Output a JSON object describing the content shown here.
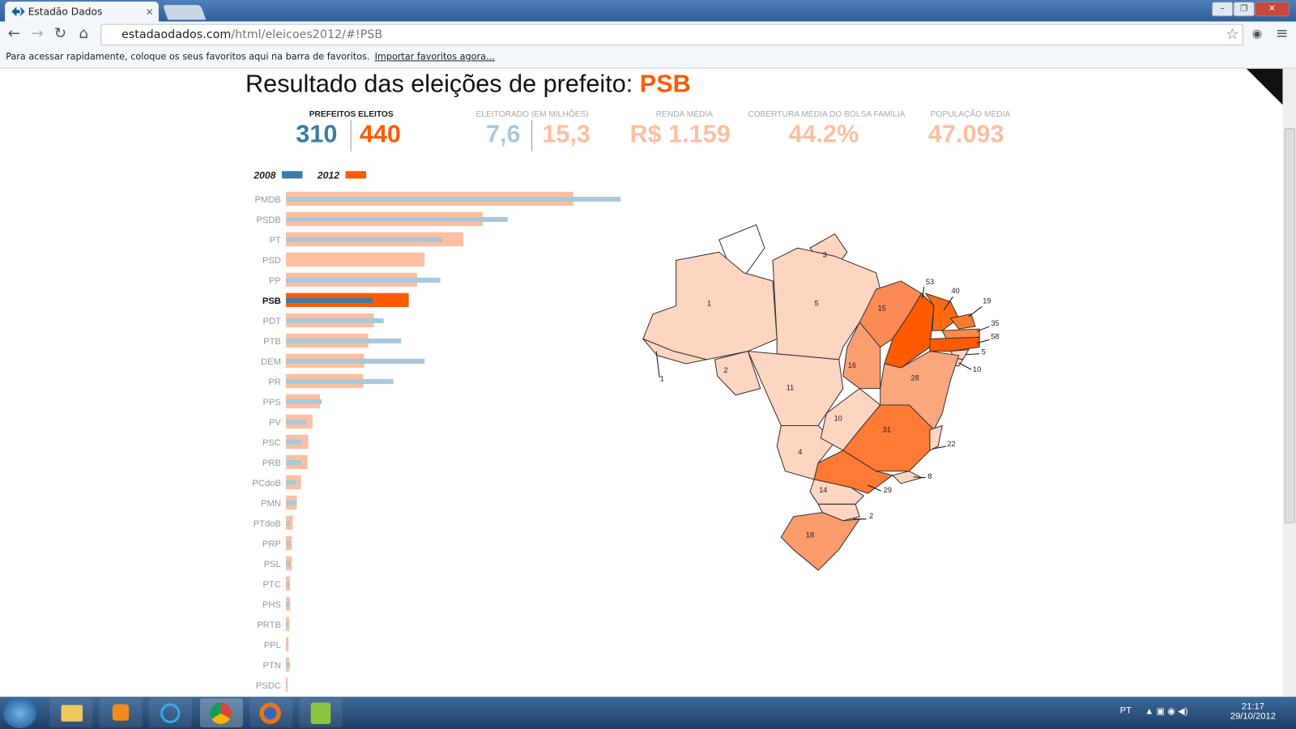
{
  "browser": {
    "tab_title": "Estadão Dados",
    "url_host": "estadaodados.com",
    "url_path": "/html/eleicoes2012/#!PSB",
    "bookmarks_text": "Para acessar rapidamente, coloque os seus favoritos aqui na barra de favoritos.",
    "bookmarks_link": "Importar favoritos agora..."
  },
  "header": {
    "title_prefix": "Resultado das eleições de prefeito:",
    "title_party": "PSB"
  },
  "stats": [
    {
      "label": "PREFEITOS ELEITOS",
      "values": [
        "310",
        "440"
      ]
    },
    {
      "label": "ELEITORADO (EM MILHÕES)",
      "values": [
        "7,6",
        "15,3"
      ]
    },
    {
      "label": "RENDA MÉDIA",
      "values": [
        "R$ 1.159"
      ]
    },
    {
      "label": "COBERTURA MÉDIA DO BOLSA FAMÍLIA",
      "values": [
        "44.2%"
      ]
    },
    {
      "label": "POPULAÇÃO MÉDIA",
      "values": [
        "47.093"
      ]
    }
  ],
  "chart_data": {
    "type": "bar",
    "orientation": "horizontal",
    "categories": [
      "PMDB",
      "PSDB",
      "PT",
      "PSD",
      "PP",
      "PSB",
      "PDT",
      "PTB",
      "DEM",
      "PR",
      "PPS",
      "PV",
      "PSC",
      "PRB",
      "PCdoB",
      "PMN",
      "PTdoB",
      "PRP",
      "PSL",
      "PTC",
      "PHS",
      "PRTB",
      "PPL",
      "PTN",
      "PSDC"
    ],
    "series": [
      {
        "name": "2008",
        "color": "#3a7ca5",
        "muted_color": "#a9c9da",
        "values": [
          1200,
          795,
          560,
          0,
          553,
          310,
          350,
          413,
          497,
          385,
          128,
          74,
          57,
          54,
          39,
          39,
          15,
          15,
          15,
          12,
          12,
          9,
          0,
          15,
          3
        ]
      },
      {
        "name": "2012",
        "color": "#ff5a00",
        "muted_color": "#fdbfa0",
        "values": [
          1030,
          705,
          636,
          497,
          470,
          440,
          315,
          295,
          280,
          277,
          122,
          95,
          80,
          77,
          54,
          39,
          24,
          21,
          21,
          15,
          15,
          12,
          9,
          12,
          6
        ]
      }
    ],
    "xlim": [
      0,
      1200
    ]
  },
  "map": {
    "state_values": [
      1,
      3,
      5,
      1,
      2,
      11,
      4,
      10,
      16,
      15,
      53,
      40,
      19,
      35,
      58,
      5,
      10,
      28,
      31,
      22,
      8,
      29,
      14,
      2,
      18
    ]
  },
  "taskbar": {
    "language": "PT",
    "time": "21:17",
    "date": "29/10/2012"
  }
}
